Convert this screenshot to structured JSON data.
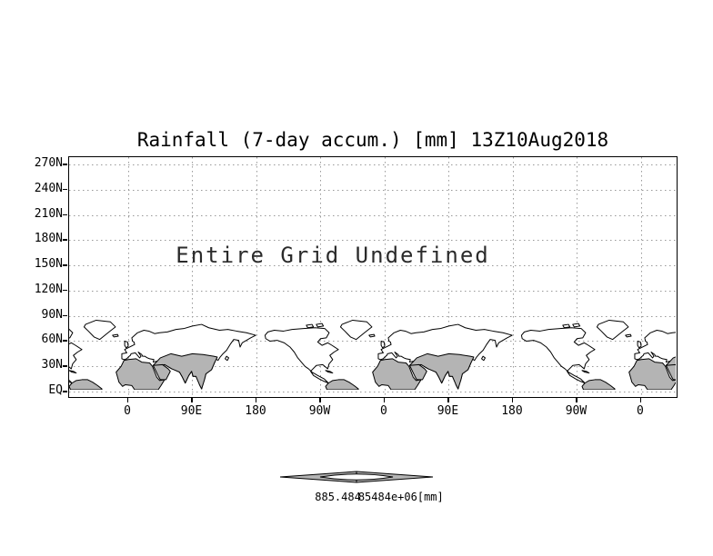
{
  "chart_data": {
    "type": "map",
    "title": "Rainfall (7-day accum.) [mm] 13Z10Aug2018",
    "annotation": "Entire Grid Undefined",
    "x_axis": {
      "ticks": [
        "0",
        "90E",
        "180",
        "90W",
        "0",
        "90E",
        "180",
        "90W",
        "0"
      ]
    },
    "y_axis": {
      "ticks": [
        "270N",
        "240N",
        "210N",
        "180N",
        "150N",
        "120N",
        "90N",
        "60N",
        "30N",
        "EQ"
      ]
    },
    "grid": true,
    "colorbar": {
      "left_label": "885.484",
      "right_label": "85484e+06",
      "unit": "[mm]"
    },
    "map_note": "world coastlines repeated twice, equator at bottom axis, shaded land over Africa, Arabia, South Asia and northern South America"
  },
  "colors": {
    "background": "#ffffff",
    "coastline": "#000000",
    "land_shade": "#b4b4b4",
    "grid_dots": "#999999",
    "frame": "#000000",
    "text": "#000000"
  }
}
